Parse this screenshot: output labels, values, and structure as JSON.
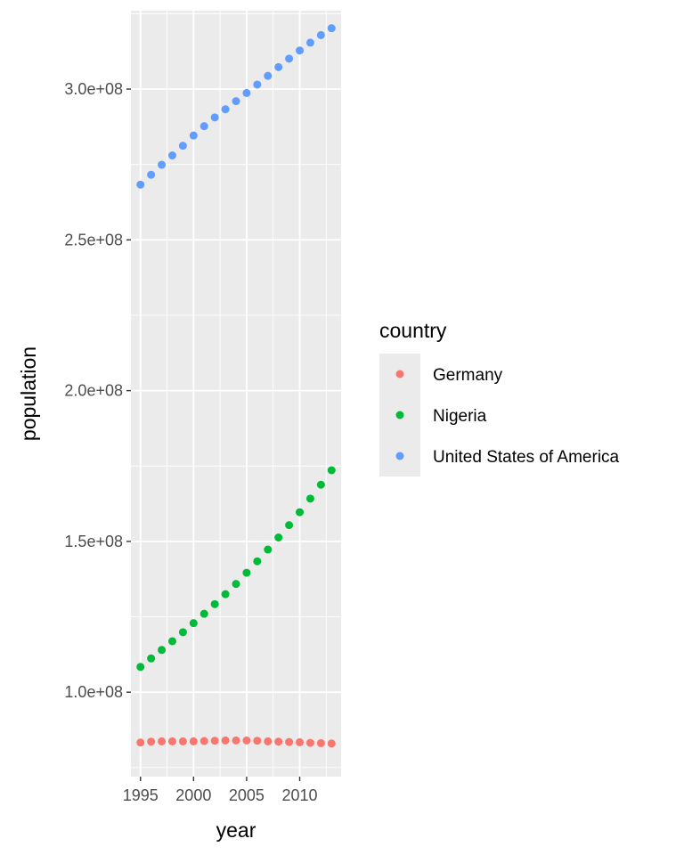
{
  "chart_data": {
    "type": "scatter",
    "title": "",
    "xlabel": "year",
    "ylabel": "population",
    "xlim": [
      1994.1,
      2013.9
    ],
    "ylim": [
      72000000,
      326000000
    ],
    "x_ticks": [
      1995,
      2000,
      2005,
      2010
    ],
    "x_tick_labels": [
      "1995",
      "2000",
      "2005",
      "2010"
    ],
    "y_ticks": [
      100000000,
      150000000,
      200000000,
      250000000,
      300000000
    ],
    "y_tick_labels": [
      "1.0e+08",
      "1.5e+08",
      "2.0e+08",
      "2.5e+08",
      "3.0e+08"
    ],
    "grid": true,
    "legend_title": "country",
    "legend_position": "right",
    "x": [
      1995,
      1996,
      1997,
      1998,
      1999,
      2000,
      2001,
      2002,
      2003,
      2004,
      2005,
      2006,
      2007,
      2008,
      2009,
      2010,
      2011,
      2012,
      2013
    ],
    "series": [
      {
        "name": "Germany",
        "color": "#F8766D",
        "values": [
          83300000,
          83600000,
          83700000,
          83700000,
          83700000,
          83700000,
          83800000,
          83900000,
          84000000,
          84000000,
          84000000,
          83900000,
          83700000,
          83600000,
          83500000,
          83400000,
          83200000,
          83100000,
          83000000
        ]
      },
      {
        "name": "Nigeria",
        "color": "#00BA38",
        "values": [
          108400000,
          111200000,
          114000000,
          116900000,
          119900000,
          122900000,
          126000000,
          129200000,
          132500000,
          135900000,
          139600000,
          143400000,
          147300000,
          151300000,
          155400000,
          159700000,
          164200000,
          168800000,
          173600000
        ]
      },
      {
        "name": "United States of America",
        "color": "#619CFF",
        "values": [
          268300000,
          271600000,
          274900000,
          278000000,
          281200000,
          284600000,
          287700000,
          290600000,
          293300000,
          296000000,
          298700000,
          301500000,
          304400000,
          307300000,
          310100000,
          312800000,
          315400000,
          317900000,
          320200000
        ]
      }
    ]
  }
}
